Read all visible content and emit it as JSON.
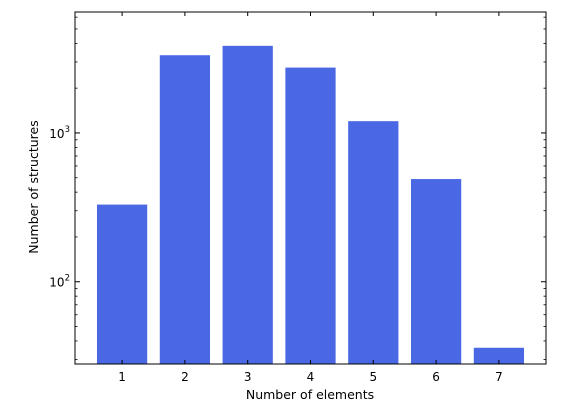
{
  "chart_data": {
    "type": "bar",
    "categories": [
      "1",
      "2",
      "3",
      "4",
      "5",
      "6",
      "7"
    ],
    "values": [
      330,
      3330,
      3850,
      2750,
      1200,
      490,
      36
    ],
    "xlabel": "Number of elements",
    "ylabel": "Number of structures",
    "yscale": "log",
    "ylim": [
      28,
      6500
    ],
    "y_ticks": [
      {
        "value": 100,
        "base": "10",
        "exp": "2"
      },
      {
        "value": 1000,
        "base": "10",
        "exp": "3"
      }
    ],
    "grid": false,
    "legend": "none",
    "bar_color": "#4a68e4"
  }
}
